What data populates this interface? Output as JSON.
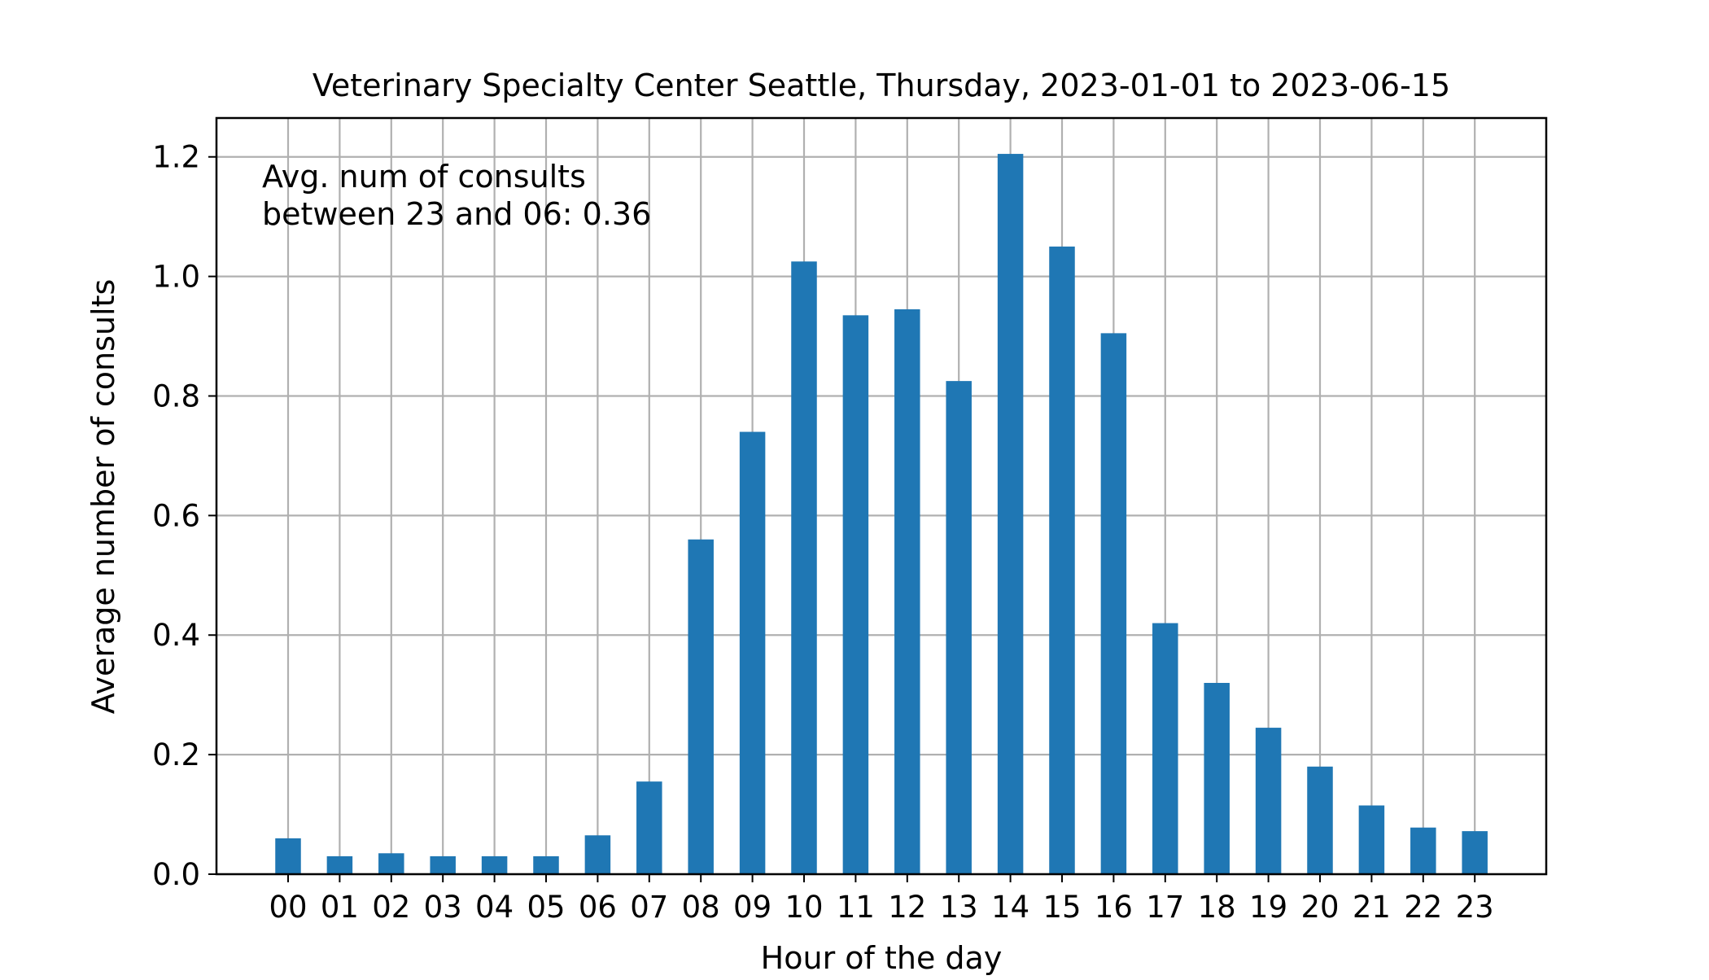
{
  "chart_data": {
    "type": "bar",
    "title": "Veterinary Specialty Center Seattle, Thursday, 2023-01-01 to 2023-06-15",
    "xlabel": "Hour of the day",
    "ylabel": "Average number of consults",
    "categories": [
      "00",
      "01",
      "02",
      "03",
      "04",
      "05",
      "06",
      "07",
      "08",
      "09",
      "10",
      "11",
      "12",
      "13",
      "14",
      "15",
      "16",
      "17",
      "18",
      "19",
      "20",
      "21",
      "22",
      "23"
    ],
    "values": [
      0.06,
      0.03,
      0.035,
      0.03,
      0.03,
      0.03,
      0.065,
      0.155,
      0.56,
      0.74,
      1.025,
      0.935,
      0.945,
      0.825,
      1.205,
      1.05,
      0.905,
      0.42,
      0.32,
      0.245,
      0.18,
      0.115,
      0.078,
      0.072
    ],
    "ylim": [
      0,
      1.265
    ],
    "yticks": [
      0.0,
      0.2,
      0.4,
      0.6,
      0.8,
      1.0,
      1.2
    ],
    "ytick_labels": [
      "0.0",
      "0.2",
      "0.4",
      "0.6",
      "0.8",
      "1.0",
      "1.2"
    ],
    "grid": true,
    "bar_color": "#1f77b4",
    "grid_color": "#b0b0b0",
    "annotation": {
      "line1": "Avg. num of consults",
      "line2": "between 23 and 06: 0.36"
    }
  }
}
